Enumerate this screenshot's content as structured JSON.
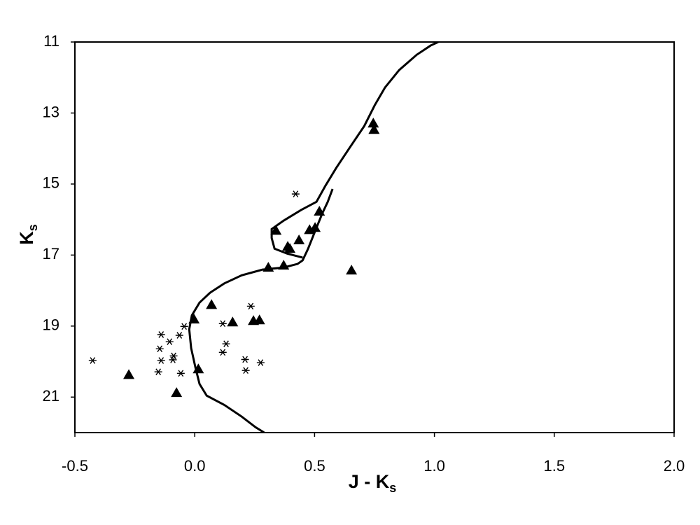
{
  "chart_data": {
    "type": "scatter",
    "x_label": "J - K",
    "x_label_sub": "s",
    "y_label": "K",
    "y_label_sub": "s",
    "xlim": [
      -0.5,
      2.0
    ],
    "xticks": [
      -0.5,
      {
        "value": 0,
        "label": "0.0"
      },
      0.5,
      {
        "value": 1,
        "label": "1.0"
      },
      1.5,
      {
        "value": 2,
        "label": "2.0"
      }
    ],
    "ylim": [
      11,
      22
    ],
    "y_inverted": true,
    "yticks": [
      11,
      13,
      15,
      17,
      19,
      21
    ],
    "grid": false,
    "series": [
      {
        "marker": "triangle",
        "color": "#000000",
        "x": [
          -0.275,
          -0.076,
          0.015,
          -0.003,
          0.07,
          0.158,
          0.245,
          0.27,
          0.307,
          0.339,
          0.371,
          0.388,
          0.397,
          0.435,
          0.479,
          0.502,
          0.52,
          0.654,
          0.745,
          0.748
        ],
        "values": [
          20.37,
          20.88,
          20.21,
          18.81,
          18.4,
          18.89,
          18.85,
          18.83,
          17.35,
          16.31,
          17.29,
          16.76,
          16.82,
          16.58,
          16.29,
          16.23,
          15.77,
          17.43,
          13.29,
          13.47
        ]
      },
      {
        "marker": "asterisk",
        "color": "#000000",
        "x": [
          -0.426,
          -0.14,
          -0.105,
          -0.146,
          -0.14,
          -0.152,
          -0.088,
          -0.091,
          -0.058,
          -0.064,
          -0.044,
          0.117,
          0.131,
          0.117,
          0.234,
          0.21,
          0.213,
          0.275,
          0.421
        ],
        "values": [
          19.97,
          19.24,
          19.44,
          19.64,
          19.97,
          20.29,
          19.84,
          19.95,
          20.33,
          19.26,
          19.01,
          18.93,
          19.5,
          19.74,
          18.44,
          19.94,
          20.25,
          20.03,
          15.28
        ]
      }
    ],
    "line": {
      "color": "#000000",
      "x": [
        0.29,
        0.254,
        0.196,
        0.123,
        0.05,
        0.02,
        0.003,
        -0.015,
        -0.023,
        -0.012,
        0.02,
        0.064,
        0.123,
        0.196,
        0.283,
        0.371,
        0.429,
        0.45,
        0.473,
        0.502,
        0.532,
        0.555,
        0.575,
        null,
        0.45,
        0.386,
        0.333,
        0.321,
        0.321,
        0.371,
        0.444,
        0.508,
        0.546,
        0.59,
        0.648,
        0.707,
        0.751,
        0.794,
        0.853,
        0.926,
        0.984,
        1.016
      ],
      "values": [
        22.0,
        21.85,
        21.55,
        21.22,
        20.96,
        20.63,
        20.17,
        19.62,
        19.09,
        18.7,
        18.34,
        18.06,
        17.8,
        17.57,
        17.41,
        17.35,
        17.25,
        17.15,
        16.82,
        16.33,
        15.83,
        15.5,
        15.14,
        null,
        17.07,
        16.96,
        16.82,
        16.52,
        16.27,
        16.03,
        15.73,
        15.5,
        15.04,
        14.55,
        13.96,
        13.37,
        12.78,
        12.28,
        11.79,
        11.36,
        11.1,
        11.0
      ]
    }
  }
}
